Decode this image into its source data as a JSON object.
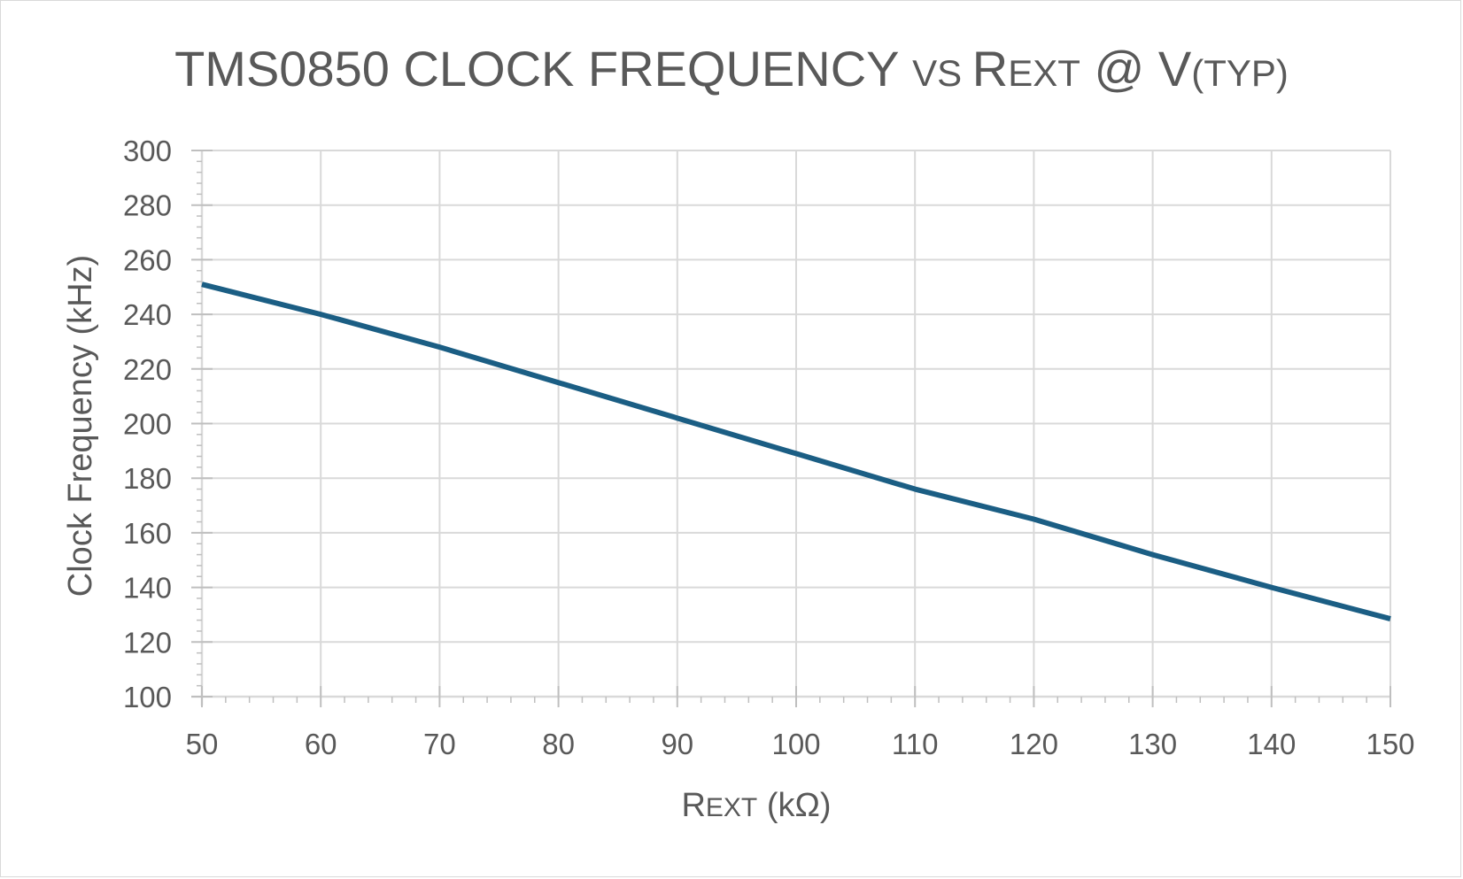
{
  "chart_data": {
    "type": "line",
    "title_parts": [
      {
        "text": "TMS0850 CLOCK FREQUENCY ",
        "size": "big"
      },
      {
        "text": "VS ",
        "size": "small"
      },
      {
        "text": "R",
        "size": "big"
      },
      {
        "text": "EXT",
        "size": "small"
      },
      {
        "text": " @ V",
        "size": "big"
      },
      {
        "text": "(TYP)",
        "size": "small"
      }
    ],
    "xlabel_parts": [
      {
        "text": "R",
        "size": "big"
      },
      {
        "text": "EXT",
        "size": "small"
      },
      {
        "text": " (kΩ)",
        "size": "big"
      }
    ],
    "ylabel": "Clock Frequency (kHz)",
    "xlim": [
      50,
      150
    ],
    "ylim": [
      100,
      300
    ],
    "x_ticks": [
      50,
      60,
      70,
      80,
      90,
      100,
      110,
      120,
      130,
      140,
      150
    ],
    "y_ticks": [
      100,
      120,
      140,
      160,
      180,
      200,
      220,
      240,
      260,
      280,
      300
    ],
    "grid": true,
    "series": [
      {
        "color": "#1b5e84",
        "x": [
          50,
          60,
          70,
          80,
          90,
          100,
          110,
          120,
          130,
          140,
          150
        ],
        "y": [
          251,
          240,
          228,
          215,
          202,
          189,
          176,
          165,
          152,
          140,
          128.5
        ]
      }
    ]
  },
  "colors": {
    "text": "#595959",
    "grid": "#d9d9d9",
    "line": "#1b5e84"
  }
}
